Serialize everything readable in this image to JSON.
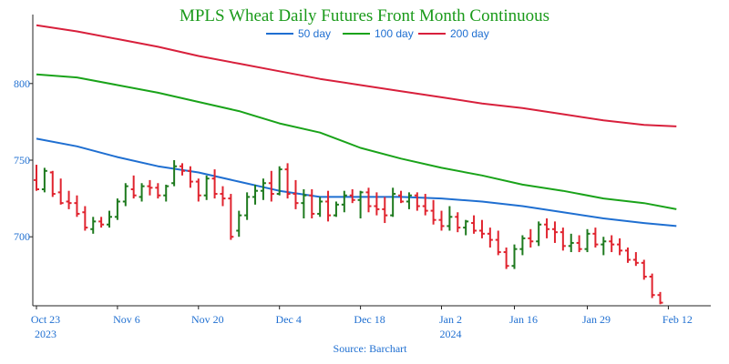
{
  "chart_data": {
    "type": "ohlc",
    "title": "MPLS Wheat Daily Futures Front Month Continuous",
    "source": "Source: Barchart",
    "colors": {
      "title": "#1a9a1a",
      "axis_text": "#1f6fd1",
      "up": "#1e7a1e",
      "down": "#e0242f",
      "ma50": "#1f6fd1",
      "ma100": "#1aa31a",
      "ma200": "#d8203c",
      "axis": "#222222"
    },
    "ylim": [
      655,
      845
    ],
    "y_ticks": [
      700,
      750,
      800
    ],
    "x_ticks": [
      {
        "label": "Oct 23",
        "sub": "2023",
        "i": 0
      },
      {
        "label": "Nov 6",
        "i": 10
      },
      {
        "label": "Nov 20",
        "i": 20
      },
      {
        "label": "Dec 4",
        "i": 30
      },
      {
        "label": "Dec 18",
        "i": 40
      },
      {
        "label": "Jan 2",
        "sub": "2024",
        "i": 50
      },
      {
        "label": "Jan 16",
        "i": 59
      },
      {
        "label": "Jan 29",
        "i": 68
      },
      {
        "label": "Feb 12",
        "i": 78
      }
    ],
    "legend": [
      {
        "name": "50 day",
        "key": "ma50"
      },
      {
        "name": "100 day",
        "key": "ma100"
      },
      {
        "name": "200 day",
        "key": "ma200"
      }
    ],
    "x_domain": [
      0,
      79
    ],
    "ohlc": [
      [
        737,
        747,
        730,
        731
      ],
      [
        731,
        745,
        729,
        743
      ],
      [
        742,
        743,
        726,
        728
      ],
      [
        729,
        738,
        721,
        722
      ],
      [
        723,
        730,
        718,
        722
      ],
      [
        722,
        727,
        713,
        715
      ],
      [
        716,
        720,
        704,
        706
      ],
      [
        705,
        713,
        702,
        710
      ],
      [
        710,
        713,
        706,
        708
      ],
      [
        708,
        717,
        706,
        713
      ],
      [
        713,
        725,
        711,
        723
      ],
      [
        723,
        735,
        720,
        733
      ],
      [
        731,
        740,
        725,
        727
      ],
      [
        726,
        735,
        723,
        733
      ],
      [
        733,
        737,
        727,
        732
      ],
      [
        732,
        735,
        725,
        727
      ],
      [
        727,
        734,
        723,
        733
      ],
      [
        735,
        750,
        733,
        746
      ],
      [
        746,
        748,
        740,
        743
      ],
      [
        743,
        746,
        732,
        736
      ],
      [
        736,
        738,
        723,
        727
      ],
      [
        727,
        740,
        724,
        738
      ],
      [
        738,
        744,
        725,
        728
      ],
      [
        728,
        733,
        720,
        725
      ],
      [
        725,
        728,
        698,
        700
      ],
      [
        704,
        717,
        700,
        714
      ],
      [
        714,
        729,
        711,
        726
      ],
      [
        726,
        734,
        721,
        730
      ],
      [
        730,
        738,
        724,
        735
      ],
      [
        735,
        743,
        723,
        728
      ],
      [
        728,
        746,
        727,
        744
      ],
      [
        744,
        748,
        725,
        728
      ],
      [
        728,
        737,
        718,
        722
      ],
      [
        722,
        731,
        712,
        727
      ],
      [
        727,
        731,
        712,
        715
      ],
      [
        715,
        726,
        713,
        723
      ],
      [
        723,
        730,
        710,
        714
      ],
      [
        714,
        723,
        713,
        721
      ],
      [
        721,
        730,
        716,
        727
      ],
      [
        727,
        731,
        722,
        724
      ],
      [
        724,
        730,
        712,
        729
      ],
      [
        729,
        732,
        716,
        720
      ],
      [
        720,
        729,
        714,
        718
      ],
      [
        718,
        726,
        709,
        714
      ],
      [
        714,
        732,
        713,
        728
      ],
      [
        727,
        730,
        722,
        723
      ],
      [
        723,
        729,
        718,
        727
      ],
      [
        727,
        729,
        717,
        720
      ],
      [
        720,
        728,
        714,
        717
      ],
      [
        717,
        724,
        708,
        711
      ],
      [
        711,
        717,
        704,
        707
      ],
      [
        707,
        720,
        704,
        713
      ],
      [
        713,
        716,
        703,
        706
      ],
      [
        706,
        711,
        701,
        710
      ],
      [
        709,
        714,
        702,
        704
      ],
      [
        704,
        711,
        699,
        702
      ],
      [
        702,
        706,
        693,
        698
      ],
      [
        698,
        704,
        688,
        690
      ],
      [
        690,
        693,
        679,
        681
      ],
      [
        681,
        695,
        679,
        692
      ],
      [
        692,
        701,
        688,
        699
      ],
      [
        699,
        705,
        693,
        697
      ],
      [
        697,
        710,
        694,
        708
      ],
      [
        708,
        712,
        699,
        705
      ],
      [
        705,
        710,
        696,
        703
      ],
      [
        703,
        706,
        691,
        694
      ],
      [
        694,
        702,
        690,
        696
      ],
      [
        696,
        701,
        690,
        692
      ],
      [
        692,
        705,
        690,
        702
      ],
      [
        702,
        706,
        693,
        695
      ],
      [
        695,
        700,
        688,
        697
      ],
      [
        697,
        701,
        690,
        695
      ],
      [
        695,
        699,
        688,
        691
      ],
      [
        691,
        693,
        683,
        685
      ],
      [
        685,
        690,
        681,
        683
      ],
      [
        683,
        685,
        672,
        674
      ],
      [
        674,
        676,
        660,
        662
      ],
      [
        662,
        664,
        656,
        657
      ]
    ],
    "ma50": [
      [
        0,
        764
      ],
      [
        5,
        759
      ],
      [
        10,
        752
      ],
      [
        15,
        746
      ],
      [
        20,
        742
      ],
      [
        25,
        736
      ],
      [
        30,
        730
      ],
      [
        35,
        726
      ],
      [
        40,
        726
      ],
      [
        45,
        726
      ],
      [
        50,
        725
      ],
      [
        55,
        723
      ],
      [
        60,
        720
      ],
      [
        65,
        716
      ],
      [
        70,
        712
      ],
      [
        75,
        709
      ],
      [
        79,
        707
      ]
    ],
    "ma100": [
      [
        0,
        806
      ],
      [
        5,
        804
      ],
      [
        10,
        799
      ],
      [
        15,
        794
      ],
      [
        20,
        788
      ],
      [
        25,
        782
      ],
      [
        30,
        774
      ],
      [
        35,
        768
      ],
      [
        40,
        758
      ],
      [
        45,
        751
      ],
      [
        50,
        745
      ],
      [
        55,
        740
      ],
      [
        60,
        734
      ],
      [
        65,
        730
      ],
      [
        70,
        725
      ],
      [
        75,
        722
      ],
      [
        79,
        718
      ]
    ],
    "ma200": [
      [
        0,
        838
      ],
      [
        5,
        834
      ],
      [
        10,
        829
      ],
      [
        15,
        824
      ],
      [
        20,
        818
      ],
      [
        25,
        813
      ],
      [
        30,
        808
      ],
      [
        35,
        803
      ],
      [
        40,
        799
      ],
      [
        45,
        795
      ],
      [
        50,
        791
      ],
      [
        55,
        787
      ],
      [
        60,
        784
      ],
      [
        65,
        780
      ],
      [
        70,
        776
      ],
      [
        75,
        773
      ],
      [
        79,
        772
      ]
    ]
  }
}
